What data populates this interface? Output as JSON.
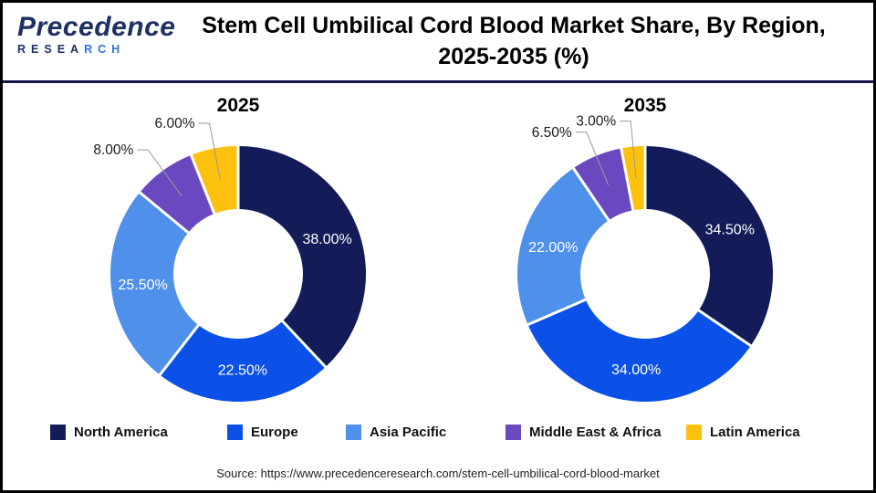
{
  "header": {
    "logo": {
      "brand_name": "Precedence",
      "brand_sub_dark": "RESEA",
      "brand_sub_light": "RCH"
    },
    "title_line1": "Stem Cell Umbilical Cord Blood Market Share, By Region,",
    "title_line2": "2025-2035 (%)"
  },
  "chart_data": [
    {
      "type": "pie",
      "subtype": "donut",
      "title": "2025",
      "categories": [
        "North America",
        "Europe",
        "Asia Pacific",
        "Middle East & Africa",
        "Latin America"
      ],
      "values": [
        38.0,
        22.5,
        25.5,
        8.0,
        6.0
      ],
      "labels": [
        "38.00%",
        "22.50%",
        "25.50%",
        "8.00%",
        "6.00%"
      ],
      "colors": [
        "#131B59",
        "#0B51E7",
        "#4F90EB",
        "#6A49C0",
        "#FCC10D"
      ],
      "label_position": [
        "inside",
        "inside",
        "inside",
        "callout",
        "callout"
      ],
      "start_angle_deg": 0,
      "direction": "clockwise",
      "legend_position": "bottom"
    },
    {
      "type": "pie",
      "subtype": "donut",
      "title": "2035",
      "categories": [
        "North America",
        "Europe",
        "Asia Pacific",
        "Middle East & Africa",
        "Latin America"
      ],
      "values": [
        34.5,
        34.0,
        22.0,
        6.5,
        3.0
      ],
      "labels": [
        "34.50%",
        "34.00%",
        "22.00%",
        "6.50%",
        "3.00%"
      ],
      "colors": [
        "#131B59",
        "#0B51E7",
        "#4F90EB",
        "#6A49C0",
        "#FCC10D"
      ],
      "label_position": [
        "inside",
        "inside",
        "inside",
        "callout",
        "callout"
      ],
      "start_angle_deg": 0,
      "direction": "clockwise",
      "legend_position": "bottom"
    }
  ],
  "legend": {
    "items": [
      {
        "label": "North America",
        "color": "#131B59"
      },
      {
        "label": "Europe",
        "color": "#0B51E7"
      },
      {
        "label": "Asia Pacific",
        "color": "#4F90EB"
      },
      {
        "label": "Middle East & Africa",
        "color": "#6A49C0"
      },
      {
        "label": "Latin America",
        "color": "#FCC10D"
      }
    ]
  },
  "source": "Source: https://www.precedenceresearch.com/stem-cell-umbilical-cord-blood-market"
}
